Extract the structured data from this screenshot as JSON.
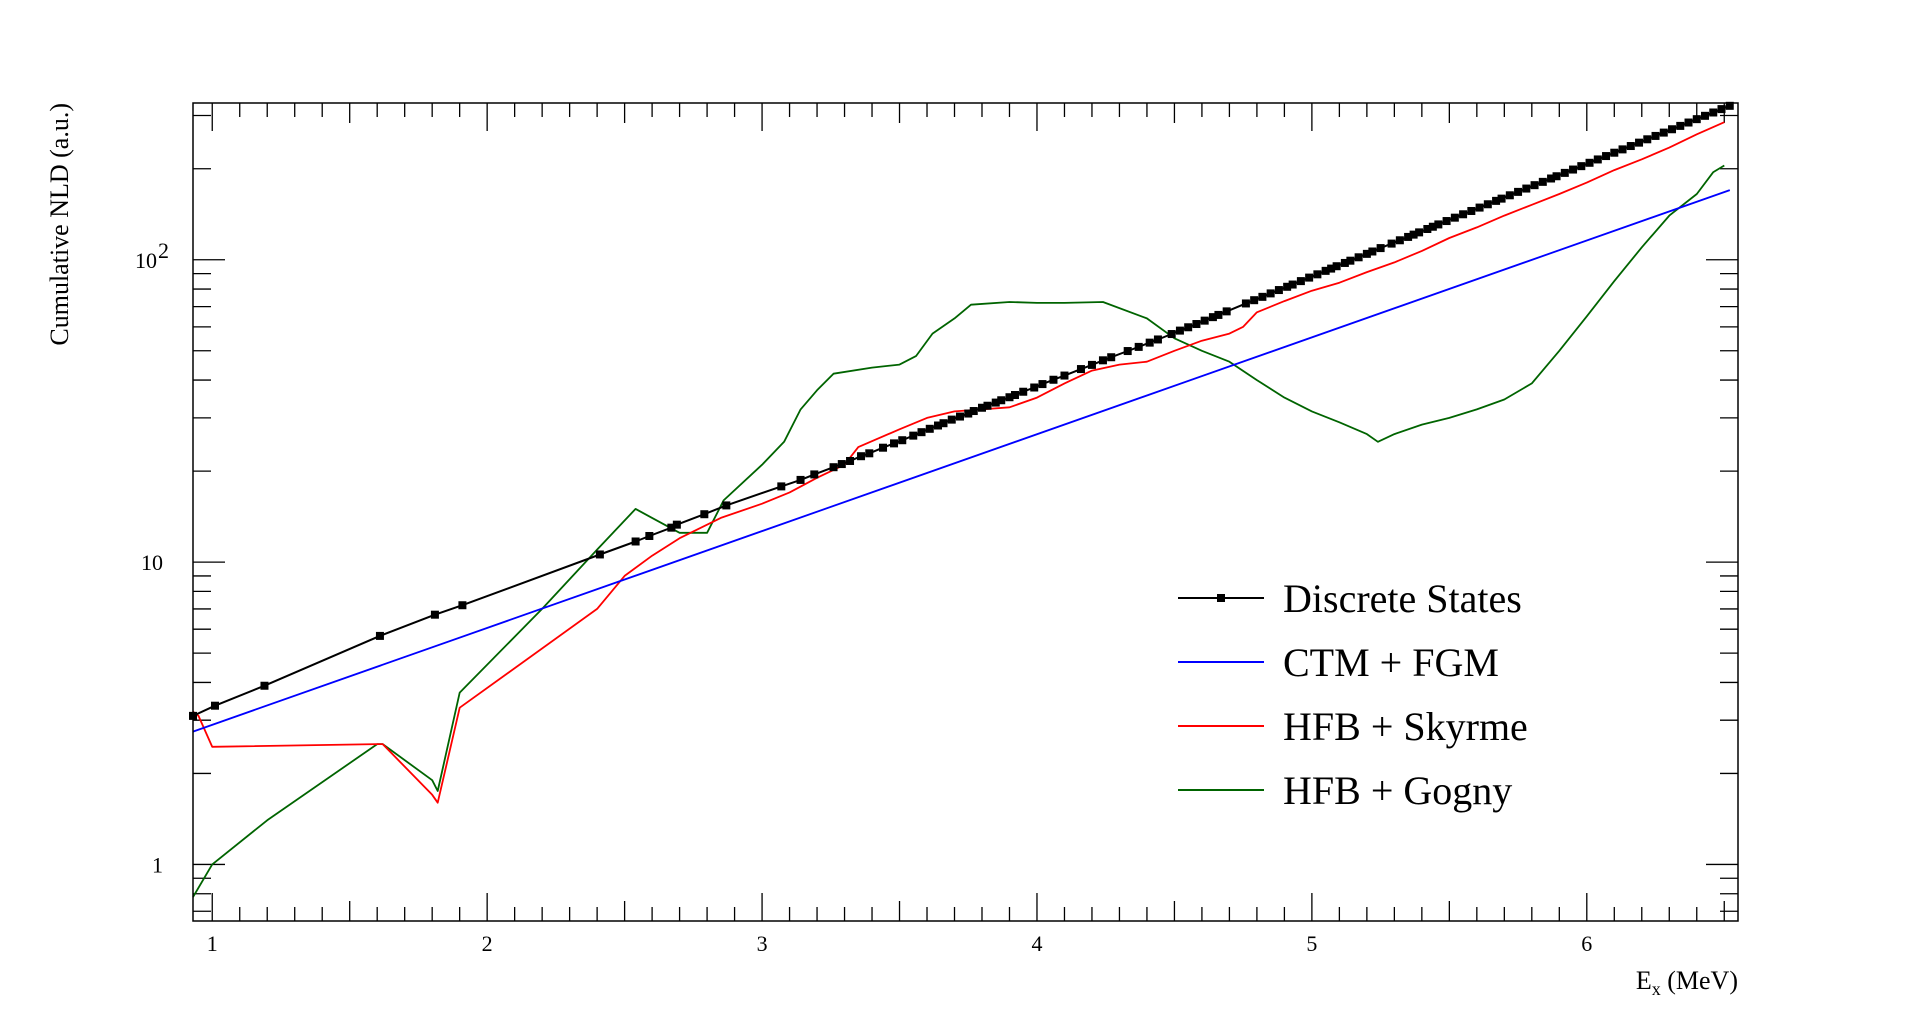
{
  "chart_data": {
    "type": "line",
    "title": "",
    "xlabel": {
      "main": "E",
      "sub": "x",
      "rest": " (MeV)"
    },
    "ylabel": "Cumulative NLD (a.u.)",
    "xlim": [
      0.93,
      6.55
    ],
    "ylim": [
      0.65,
      330
    ],
    "yscale": "log",
    "grid": false,
    "legend_position": "bottom-right",
    "x_ticks": [
      {
        "value": 1,
        "label": "1"
      },
      {
        "value": 2,
        "label": "2"
      },
      {
        "value": 3,
        "label": "3"
      },
      {
        "value": 4,
        "label": "4"
      },
      {
        "value": 5,
        "label": "5"
      },
      {
        "value": 6,
        "label": "6"
      }
    ],
    "y_ticks": [
      {
        "value": 1,
        "label": "1",
        "base": "",
        "exp": ""
      },
      {
        "value": 10,
        "label": "10",
        "base": "",
        "exp": ""
      },
      {
        "value": 100,
        "label": "",
        "base": "10",
        "exp": "2"
      }
    ],
    "series": [
      {
        "name": "Discrete States",
        "color": "#000000",
        "marker": "square",
        "x": [
          0.93,
          1.01,
          1.19,
          1.61,
          1.81,
          1.91,
          2.41,
          2.54,
          2.59,
          2.67,
          2.69,
          2.79,
          2.87,
          3.07,
          3.14,
          3.19,
          3.26,
          3.29,
          3.32,
          3.36,
          3.39,
          3.44,
          3.48,
          3.51,
          3.55,
          3.58,
          3.61,
          3.64,
          3.66,
          3.69,
          3.72,
          3.75,
          3.77,
          3.8,
          3.82,
          3.85,
          3.87,
          3.9,
          3.92,
          3.95,
          3.99,
          4.02,
          4.06,
          4.1,
          4.16,
          4.2,
          4.24,
          4.27,
          4.33,
          4.37,
          4.41,
          4.44,
          4.49,
          4.52,
          4.55,
          4.58,
          4.61,
          4.64,
          4.66,
          4.69,
          4.76,
          4.79,
          4.82,
          4.85,
          4.88,
          4.91,
          4.93,
          4.96,
          4.99,
          5.02,
          5.05,
          5.07,
          5.09,
          5.12,
          5.14,
          5.17,
          5.2,
          5.22,
          5.25,
          5.29,
          5.32,
          5.35,
          5.37,
          5.39,
          5.42,
          5.44,
          5.46,
          5.49,
          5.52,
          5.55,
          5.58,
          5.61,
          5.64,
          5.67,
          5.69,
          5.72,
          5.75,
          5.78,
          5.81,
          5.84,
          5.87,
          5.89,
          5.92,
          5.95,
          5.98,
          6.01,
          6.04,
          6.07,
          6.1,
          6.13,
          6.16,
          6.19,
          6.22,
          6.25,
          6.28,
          6.31,
          6.34,
          6.37,
          6.4,
          6.43,
          6.46,
          6.49,
          6.52
        ],
        "values": [
          3.1,
          3.35,
          3.9,
          5.7,
          6.7,
          7.2,
          10.6,
          11.7,
          12.2,
          13.0,
          13.3,
          14.4,
          15.4,
          17.8,
          18.7,
          19.5,
          20.6,
          21.1,
          21.6,
          22.4,
          22.9,
          23.9,
          24.7,
          25.3,
          26.2,
          26.9,
          27.6,
          28.3,
          28.8,
          29.6,
          30.3,
          31.0,
          31.6,
          32.4,
          32.9,
          33.7,
          34.3,
          35.1,
          35.7,
          36.6,
          37.8,
          38.8,
          40.1,
          41.4,
          43.5,
          44.9,
          46.5,
          47.6,
          49.9,
          51.5,
          53.2,
          54.5,
          56.8,
          58.3,
          59.8,
          61.3,
          62.9,
          64.6,
          65.7,
          67.5,
          71.7,
          73.5,
          75.4,
          77.4,
          79.4,
          81.4,
          82.8,
          85.0,
          87.3,
          89.5,
          91.9,
          93.5,
          95.2,
          97.6,
          99.3,
          101.9,
          104.6,
          106.5,
          109.3,
          113.1,
          116.0,
          119.0,
          121.1,
          123.2,
          126.4,
          128.6,
          130.9,
          134.3,
          137.8,
          141.4,
          145.0,
          148.8,
          152.6,
          156.6,
          159.3,
          163.4,
          167.7,
          172.0,
          176.5,
          181.0,
          185.7,
          188.9,
          193.8,
          198.8,
          204.0,
          209.3,
          214.7,
          220.3,
          226.0,
          231.8,
          237.8,
          244.0,
          250.3,
          256.8,
          263.4,
          270.2,
          277.2,
          284.4,
          291.8,
          299.3,
          307.0,
          315.0,
          323.0
        ]
      },
      {
        "name": "CTM + FGM",
        "color": "#0000ff",
        "marker": "none",
        "x": [
          0.93,
          6.52
        ],
        "values": [
          2.75,
          170
        ]
      },
      {
        "name": "HFB + Skyrme",
        "color": "#ff0000",
        "marker": "none",
        "x": [
          0.93,
          0.95,
          1.0,
          1.6,
          1.62,
          1.8,
          1.82,
          1.9,
          2.4,
          2.5,
          2.6,
          2.7,
          2.85,
          3.0,
          3.1,
          3.2,
          3.3,
          3.35,
          3.5,
          3.6,
          3.7,
          3.8,
          3.9,
          4.0,
          4.1,
          4.2,
          4.3,
          4.4,
          4.5,
          4.6,
          4.7,
          4.75,
          4.8,
          4.9,
          5.0,
          5.1,
          5.2,
          5.3,
          5.4,
          5.5,
          5.6,
          5.7,
          5.8,
          5.9,
          6.0,
          6.1,
          6.2,
          6.3,
          6.4,
          6.5
        ],
        "values": [
          3.2,
          3.1,
          2.45,
          2.5,
          2.5,
          1.7,
          1.6,
          3.3,
          7.0,
          9.0,
          10.5,
          12.0,
          14.0,
          15.6,
          17.0,
          19.0,
          21.0,
          24.0,
          27.5,
          30.0,
          31.5,
          32.0,
          32.5,
          35.0,
          39.0,
          43.0,
          45.0,
          46.0,
          50.0,
          54.0,
          57.0,
          60.0,
          67.0,
          73.0,
          79.0,
          84.0,
          91.0,
          98.0,
          107.0,
          118.0,
          128.0,
          140.0,
          152.0,
          165.0,
          180.0,
          198.0,
          215.0,
          235.0,
          260.0,
          285.0
        ]
      },
      {
        "name": "HFB + Gogny",
        "color": "#006400",
        "marker": "none",
        "x": [
          0.93,
          1.0,
          1.2,
          1.6,
          1.62,
          1.8,
          1.82,
          1.9,
          2.2,
          2.4,
          2.54,
          2.6,
          2.7,
          2.8,
          2.86,
          3.0,
          3.08,
          3.14,
          3.2,
          3.26,
          3.4,
          3.5,
          3.56,
          3.62,
          3.7,
          3.76,
          3.9,
          4.0,
          4.1,
          4.24,
          4.4,
          4.5,
          4.6,
          4.7,
          4.8,
          4.9,
          5.0,
          5.1,
          5.2,
          5.24,
          5.3,
          5.4,
          5.5,
          5.6,
          5.7,
          5.8,
          5.9,
          6.0,
          6.1,
          6.2,
          6.3,
          6.4,
          6.46,
          6.5
        ],
        "values": [
          0.78,
          1.0,
          1.4,
          2.5,
          2.5,
          1.9,
          1.75,
          3.7,
          7.0,
          11.0,
          15.0,
          14.0,
          12.5,
          12.5,
          16.0,
          21.0,
          25.0,
          32.0,
          37.0,
          42.0,
          44.0,
          45.0,
          48.0,
          57.0,
          64.0,
          71.0,
          72.5,
          72.0,
          72.0,
          72.5,
          64.0,
          55.0,
          50.0,
          46.0,
          40.0,
          35.0,
          31.5,
          29.0,
          26.5,
          25.0,
          26.5,
          28.5,
          30.0,
          32.0,
          34.5,
          39.0,
          50.0,
          65.0,
          85.0,
          110.0,
          140.0,
          165.0,
          195.0,
          205.0
        ]
      }
    ]
  }
}
